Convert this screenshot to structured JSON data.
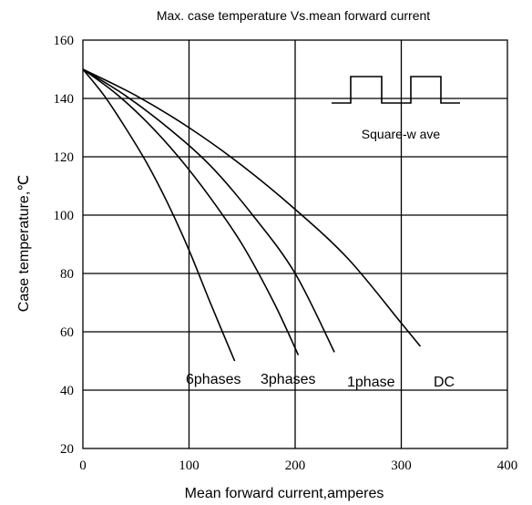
{
  "chart_data": {
    "type": "line",
    "title": "Max. case temperature  Vs.mean  forward  current",
    "xlabel": "Mean  forward  current,amperes",
    "ylabel": "Case temperature,℃",
    "xlim": [
      0,
      400
    ],
    "ylim": [
      20,
      160
    ],
    "xticks": [
      "0",
      "100",
      "200",
      "300",
      "400"
    ],
    "yticks": [
      "20",
      "40",
      "60",
      "80",
      "100",
      "120",
      "140",
      "160"
    ],
    "grid": true,
    "series": [
      {
        "name": "6phases",
        "x": [
          0,
          20,
          40,
          60,
          80,
          100,
          120,
          143
        ],
        "y": [
          150,
          141,
          130,
          118,
          104,
          88,
          70,
          50
        ]
      },
      {
        "name": "3phases",
        "x": [
          0,
          30,
          60,
          90,
          120,
          150,
          180,
          203
        ],
        "y": [
          150,
          142,
          132,
          120,
          106,
          90,
          70,
          52
        ]
      },
      {
        "name": "1phase",
        "x": [
          0,
          40,
          80,
          120,
          160,
          200,
          237
        ],
        "y": [
          150,
          141,
          130,
          117,
          100,
          80,
          53
        ]
      },
      {
        "name": "DC",
        "x": [
          0,
          50,
          100,
          150,
          200,
          250,
          300,
          318
        ],
        "y": [
          150,
          141,
          130,
          117,
          102,
          85,
          63,
          55
        ]
      }
    ],
    "annotations": {
      "waveform_label": "Square-w ave"
    }
  }
}
